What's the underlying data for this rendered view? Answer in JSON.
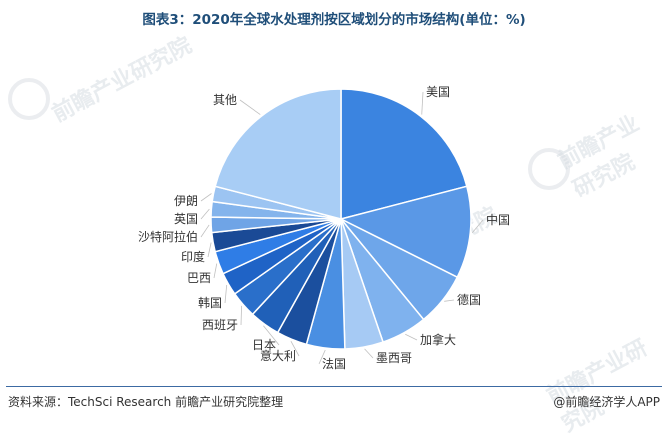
{
  "title": "图表3：2020年全球水处理剂按区域划分的市场结构(单位：%)",
  "chart_data": {
    "type": "pie",
    "title": "图表3：2020年全球水处理剂按区域划分的市场结构(单位：%)",
    "slices": [
      {
        "label": "美国",
        "value": 22,
        "color": "#3b84e0"
      },
      {
        "label": "中国",
        "value": 12,
        "color": "#5a98e6"
      },
      {
        "label": "德国",
        "value": 7,
        "color": "#6ea6ea"
      },
      {
        "label": "加拿大",
        "value": 6,
        "color": "#7fb2ee"
      },
      {
        "label": "墨西哥",
        "value": 5,
        "color": "#a6caf4"
      },
      {
        "label": "法国",
        "value": 5,
        "color": "#4a8fe2"
      },
      {
        "label": "意大利",
        "value": 4,
        "color": "#1b4f9e"
      },
      {
        "label": "日本",
        "value": 4,
        "color": "#2060b8"
      },
      {
        "label": "西班牙",
        "value": 3.5,
        "color": "#2a6fca"
      },
      {
        "label": "韩国",
        "value": 3,
        "color": "#1f63c6"
      },
      {
        "label": "巴西",
        "value": 3,
        "color": "#2f7de6"
      },
      {
        "label": "印度",
        "value": 2.5,
        "color": "#1a4a96"
      },
      {
        "label": "沙特阿拉伯",
        "value": 2,
        "color": "#6fa4e6"
      },
      {
        "label": "英国",
        "value": 2,
        "color": "#84b4ec"
      },
      {
        "label": "伊朗",
        "value": 2,
        "color": "#9cc4f2"
      },
      {
        "label": "其他",
        "value": 22,
        "color": "#a8cdf5"
      }
    ]
  },
  "watermark_text": "前瞻产业研究院",
  "footer": {
    "source": "资料来源：TechSci Research 前瞻产业研究院整理",
    "brand": "@前瞻经济学人APP"
  }
}
